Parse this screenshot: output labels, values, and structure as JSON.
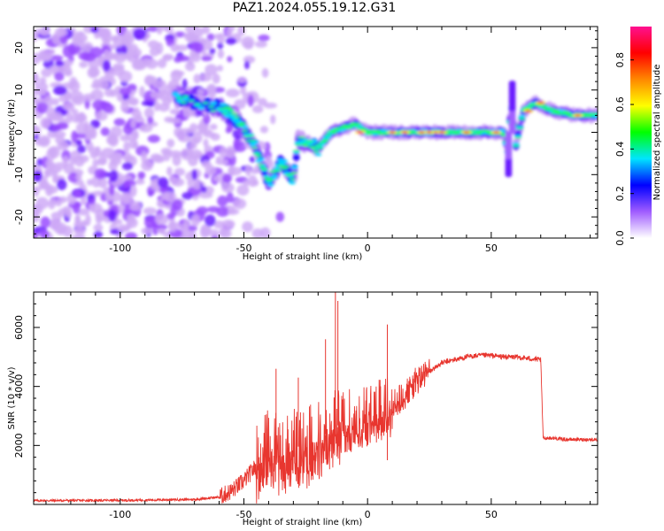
{
  "title": "PAZ1.2024.055.19.12.G31",
  "chart_data": [
    {
      "type": "heatmap",
      "xlabel": "Height of straight line (km)",
      "ylabel": "Frequency (Hz)",
      "xlim": [
        -135,
        93
      ],
      "ylim": [
        -25,
        25
      ],
      "xticks": [
        -100,
        -50,
        0,
        50
      ],
      "yticks": [
        -20,
        -10,
        0,
        10,
        20
      ],
      "colorbar": {
        "label": "Normalized spectral amplitude",
        "range": [
          0,
          0.95
        ],
        "ticks": [
          0.0,
          0.2,
          0.4,
          0.6,
          0.8
        ],
        "colormap": [
          "#ffffff",
          "#a05cff",
          "#0000ff",
          "#00e5ff",
          "#00ff00",
          "#ffff00",
          "#ff8800",
          "#ff0000",
          "#ff1090"
        ]
      },
      "ridge": {
        "description_points_km_hz": [
          [
            -78,
            8
          ],
          [
            -70,
            7
          ],
          [
            -60,
            6
          ],
          [
            -55,
            4
          ],
          [
            -50,
            1
          ],
          [
            -45,
            -4
          ],
          [
            -40,
            -12
          ],
          [
            -35,
            -7
          ],
          [
            -30,
            -11
          ],
          [
            -28,
            -2
          ],
          [
            -22,
            -3
          ],
          [
            -20,
            -4
          ],
          [
            -15,
            0
          ],
          [
            -10,
            1
          ],
          [
            -5,
            2
          ],
          [
            0,
            0
          ],
          [
            10,
            0
          ],
          [
            20,
            0
          ],
          [
            30,
            0
          ],
          [
            40,
            0
          ],
          [
            50,
            0
          ],
          [
            55,
            0
          ],
          [
            57,
            -5
          ],
          [
            58,
            8
          ],
          [
            60,
            -3
          ],
          [
            63,
            5
          ],
          [
            68,
            7
          ],
          [
            75,
            5
          ],
          [
            85,
            4
          ],
          [
            93,
            4
          ]
        ]
      }
    },
    {
      "type": "line",
      "xlabel": "Height of straight line (km)",
      "ylabel": "SNR (10 * v/v)",
      "xlim": [
        -135,
        93
      ],
      "ylim": [
        0,
        7200
      ],
      "xticks": [
        -100,
        -50,
        0,
        50
      ],
      "yticks": [
        2000,
        4000,
        6000
      ],
      "series": [
        {
          "color": "#e8362f",
          "x": [
            -135,
            -100,
            -70,
            -60,
            -55,
            -50,
            -45,
            -40,
            -35,
            -30,
            -25,
            -20,
            -15,
            -10,
            -5,
            0,
            5,
            10,
            15,
            20,
            25,
            30,
            35,
            40,
            45,
            50,
            55,
            60,
            65,
            70,
            71,
            75,
            80,
            85,
            93
          ],
          "y": [
            130,
            140,
            170,
            250,
            450,
            800,
            1300,
            2000,
            1600,
            2000,
            1900,
            2200,
            2500,
            2800,
            2900,
            3000,
            3200,
            3400,
            3700,
            4200,
            4500,
            4800,
            4900,
            5000,
            5050,
            5050,
            5000,
            5000,
            4950,
            4900,
            2250,
            2250,
            2200,
            2200,
            2200
          ],
          "spikes": [
            [
              -37,
              4600
            ],
            [
              -13,
              7200
            ],
            [
              -12,
              6900
            ],
            [
              -17,
              5600
            ],
            [
              8,
              6100
            ],
            [
              8,
              1500
            ],
            [
              -28,
              4300
            ]
          ]
        }
      ]
    }
  ]
}
